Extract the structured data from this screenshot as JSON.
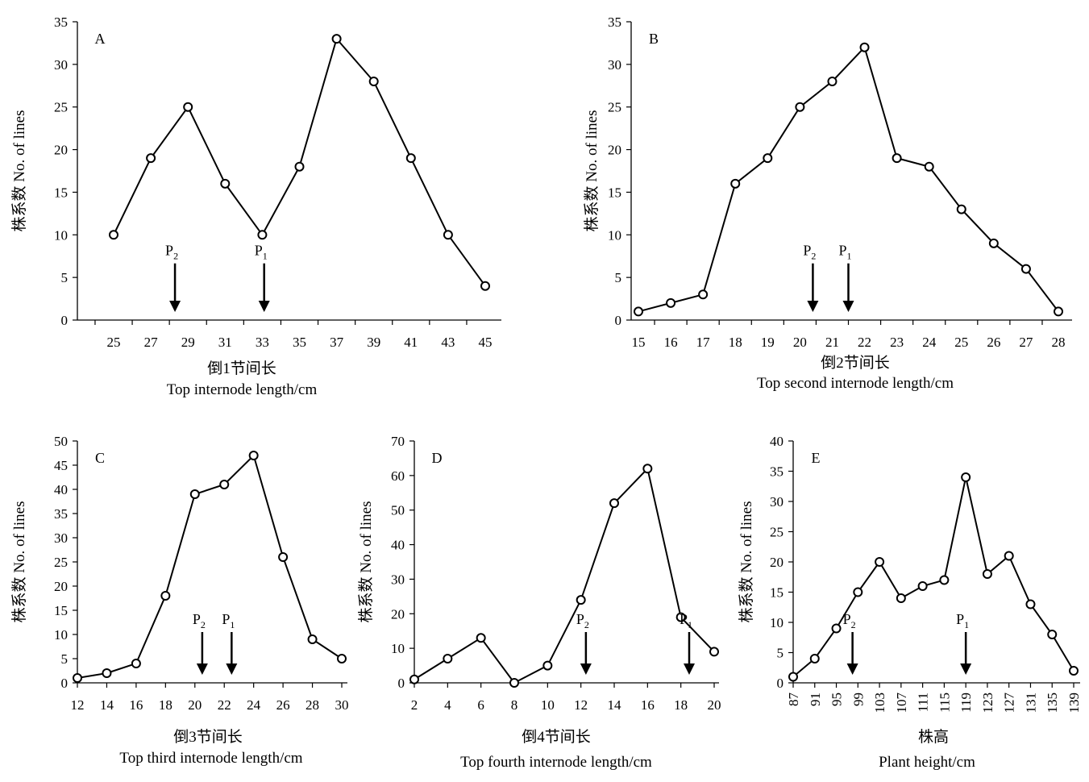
{
  "chart_data": [
    {
      "panel": "A",
      "type": "line",
      "ylabel": "株系数 No. of lines",
      "xlabel_cn": "倒1节间长",
      "xlabel_en": "Top internode length/cm",
      "categories": [
        "25",
        "27",
        "29",
        "31",
        "33",
        "35",
        "37",
        "39",
        "41",
        "43",
        "45"
      ],
      "values": [
        10,
        19,
        25,
        16,
        10,
        18,
        33,
        28,
        19,
        10,
        4
      ],
      "ylim": [
        0,
        35
      ],
      "yticks": [
        0,
        5,
        10,
        15,
        20,
        25,
        30,
        35
      ],
      "markers": [
        {
          "label": "P",
          "sub": "2",
          "x": 28.3
        },
        {
          "label": "P",
          "sub": "1",
          "x": 33.1
        }
      ]
    },
    {
      "panel": "B",
      "type": "line",
      "ylabel": "株系数 No. of lines",
      "xlabel_cn": "倒2节间长",
      "xlabel_en": "Top second internode length/cm",
      "categories": [
        "15",
        "16",
        "17",
        "18",
        "19",
        "20",
        "21",
        "22",
        "23",
        "24",
        "25",
        "26",
        "27",
        "28"
      ],
      "values": [
        1,
        2,
        3,
        16,
        19,
        25,
        28,
        32,
        19,
        18,
        13,
        9,
        6,
        1
      ],
      "ylim": [
        0,
        35
      ],
      "yticks": [
        0,
        5,
        10,
        15,
        20,
        25,
        30,
        35
      ],
      "markers": [
        {
          "label": "P",
          "sub": "2",
          "x": 20.4
        },
        {
          "label": "P",
          "sub": "1",
          "x": 21.5
        }
      ]
    },
    {
      "panel": "C",
      "type": "line",
      "ylabel": "株系数 No. of lines",
      "xlabel_cn": "倒3节间长",
      "xlabel_en": "Top third internode length/cm",
      "categories": [
        "12",
        "14",
        "16",
        "18",
        "20",
        "22",
        "24",
        "26",
        "28",
        "30"
      ],
      "values": [
        1,
        2,
        4,
        18,
        39,
        41,
        47,
        26,
        9,
        5
      ],
      "ylim": [
        0,
        50
      ],
      "yticks": [
        0,
        5,
        10,
        15,
        20,
        25,
        30,
        35,
        40,
        45,
        50
      ],
      "markers": [
        {
          "label": "P",
          "sub": "2",
          "x": 20.5
        },
        {
          "label": "P",
          "sub": "1",
          "x": 22.5
        }
      ]
    },
    {
      "panel": "D",
      "type": "line",
      "ylabel": "株系数 No. of lines",
      "xlabel_cn": "倒4节间长",
      "xlabel_en": "Top fourth internode length/cm",
      "categories": [
        "2",
        "4",
        "6",
        "8",
        "10",
        "12",
        "14",
        "16",
        "18",
        "20"
      ],
      "values": [
        1,
        7,
        13,
        0,
        5,
        24,
        52,
        62,
        19,
        9
      ],
      "ylim": [
        0,
        70
      ],
      "yticks": [
        0,
        10,
        20,
        30,
        40,
        50,
        60,
        70
      ],
      "markers": [
        {
          "label": "P",
          "sub": "2",
          "x": 12.3
        },
        {
          "label": "P",
          "sub": "1",
          "x": 18.5
        }
      ]
    },
    {
      "panel": "E",
      "type": "line",
      "ylabel": "株系数 No. of lines",
      "xlabel_cn": "株高",
      "xlabel_en": "Plant height/cm",
      "categories": [
        "87",
        "91",
        "95",
        "99",
        "103",
        "107",
        "111",
        "115",
        "119",
        "123",
        "127",
        "131",
        "135",
        "139"
      ],
      "values": [
        1,
        4,
        9,
        15,
        20,
        14,
        16,
        17,
        34,
        18,
        21,
        13,
        8,
        2
      ],
      "ylim": [
        0,
        40
      ],
      "yticks": [
        0,
        5,
        10,
        15,
        20,
        25,
        30,
        35,
        40
      ],
      "markers": [
        {
          "label": "P",
          "sub": "2",
          "x": 98
        },
        {
          "label": "P",
          "sub": "1",
          "x": 119
        }
      ]
    }
  ]
}
